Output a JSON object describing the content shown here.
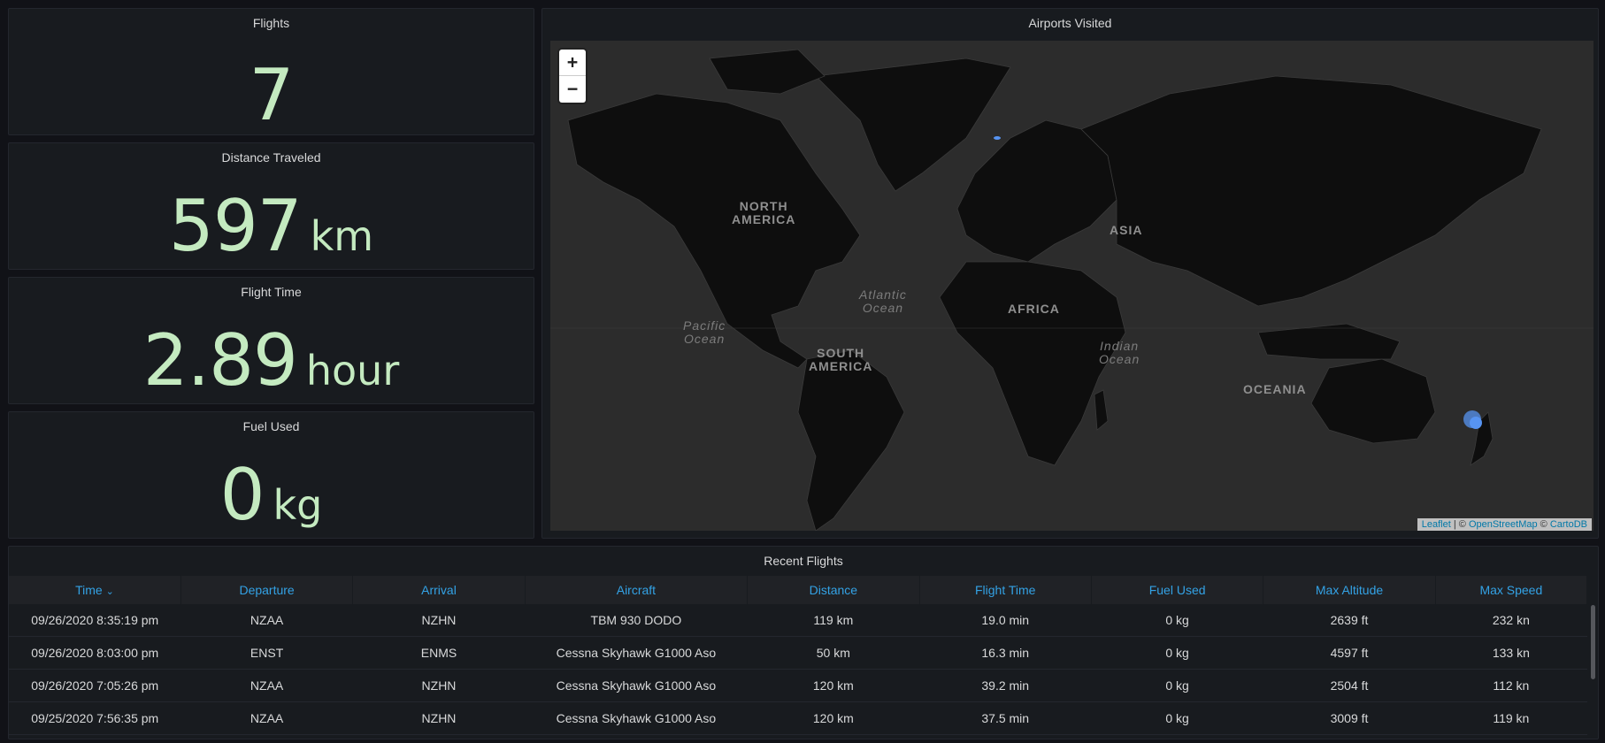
{
  "stats": [
    {
      "title": "Flights",
      "value": "7",
      "unit": ""
    },
    {
      "title": "Distance Traveled",
      "value": "597",
      "unit": "km"
    },
    {
      "title": "Flight Time",
      "value": "2.89",
      "unit": "hour"
    },
    {
      "title": "Fuel Used",
      "value": "0",
      "unit": "kg"
    }
  ],
  "map": {
    "title": "Airports Visited",
    "zoom_in": "+",
    "zoom_out": "−",
    "attribution": {
      "leaflet": "Leaflet",
      "sep": " | © ",
      "osm": "OpenStreetMap",
      "sep2": " © ",
      "carto": "CartoDB"
    },
    "continents": {
      "north_america": "NORTH\nAMERICA",
      "south_america": "SOUTH\nAMERICA",
      "africa": "AFRICA",
      "asia": "ASIA",
      "oceania": "OCEANIA"
    },
    "oceans": {
      "atlantic": "Atlantic\nOcean",
      "pacific": "Pacific\nOcean",
      "indian": "Indian\nOcean"
    },
    "marker_color": "#5794f2"
  },
  "table": {
    "title": "Recent Flights",
    "sort_indicator": "⌄",
    "columns": [
      "Time",
      "Departure",
      "Arrival",
      "Aircraft",
      "Distance",
      "Flight Time",
      "Fuel Used",
      "Max Altitude",
      "Max Speed"
    ],
    "rows": [
      [
        "09/26/2020 8:35:19 pm",
        "NZAA",
        "NZHN",
        "TBM 930 DODO",
        "119 km",
        "19.0 min",
        "0 kg",
        "2639 ft",
        "232 kn"
      ],
      [
        "09/26/2020 8:03:00 pm",
        "ENST",
        "ENMS",
        "Cessna Skyhawk G1000 Aso",
        "50 km",
        "16.3 min",
        "0 kg",
        "4597 ft",
        "133 kn"
      ],
      [
        "09/26/2020 7:05:26 pm",
        "NZAA",
        "NZHN",
        "Cessna Skyhawk G1000 Aso",
        "120 km",
        "39.2 min",
        "0 kg",
        "2504 ft",
        "112 kn"
      ],
      [
        "09/25/2020 7:56:35 pm",
        "NZAA",
        "NZHN",
        "Cessna Skyhawk G1000 Aso",
        "120 km",
        "37.5 min",
        "0 kg",
        "3009 ft",
        "119 kn"
      ]
    ]
  },
  "colors": {
    "background": "#111217",
    "panel": "#181b1f",
    "stat_value": "#c4eac0",
    "header_link": "#33a2e5"
  }
}
